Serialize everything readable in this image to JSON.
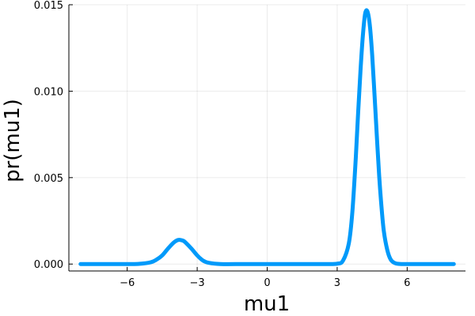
{
  "chart_data": {
    "type": "line",
    "title": "",
    "xlabel": "mu1",
    "ylabel": "pr(mu1)",
    "xlim": [
      -8.5,
      8.5
    ],
    "ylim": [
      -0.0004,
      0.015
    ],
    "grid": true,
    "legend": "none",
    "x_ticks": [
      {
        "value": -6,
        "label": "−6"
      },
      {
        "value": -3,
        "label": "−3"
      },
      {
        "value": 0,
        "label": "0"
      },
      {
        "value": 3,
        "label": "3"
      },
      {
        "value": 6,
        "label": "6"
      }
    ],
    "y_ticks": [
      {
        "value": 0.0,
        "label": "0.000"
      },
      {
        "value": 0.005,
        "label": "0.005"
      },
      {
        "value": 0.01,
        "label": "0.010"
      },
      {
        "value": 0.015,
        "label": "0.015"
      }
    ],
    "color": "#009AFA",
    "series": [
      {
        "x": [
          -8.0,
          -7.0,
          -6.0,
          -5.5,
          -5.0,
          -4.75,
          -4.5,
          -4.25,
          -4.0,
          -3.85,
          -3.75,
          -3.6,
          -3.5,
          -3.25,
          -3.0,
          -2.75,
          -2.5,
          -2.0,
          -1.0,
          0.0,
          1.0,
          2.0,
          2.5,
          3.0,
          3.25,
          3.5,
          3.65,
          3.8,
          3.9,
          4.0,
          4.1,
          4.2,
          4.3,
          4.4,
          4.5,
          4.6,
          4.7,
          4.8,
          4.9,
          5.0,
          5.15,
          5.3,
          5.5,
          5.75,
          6.0,
          7.0,
          8.0
        ],
        "y": [
          0.0,
          0.0,
          0.0,
          1e-05,
          0.0001,
          0.00025,
          0.0005,
          0.0009,
          0.00125,
          0.00138,
          0.0014,
          0.00135,
          0.00125,
          0.0009,
          0.0005,
          0.0002,
          7e-05,
          0.0,
          0.0,
          0.0,
          0.0,
          0.0,
          0.0,
          2e-05,
          0.0002,
          0.0012,
          0.003,
          0.0062,
          0.0088,
          0.0112,
          0.0132,
          0.0145,
          0.0146,
          0.0138,
          0.0121,
          0.0098,
          0.0074,
          0.0051,
          0.0033,
          0.0019,
          0.0008,
          0.00025,
          4e-05,
          0.0,
          0.0,
          0.0,
          0.0
        ]
      }
    ]
  }
}
